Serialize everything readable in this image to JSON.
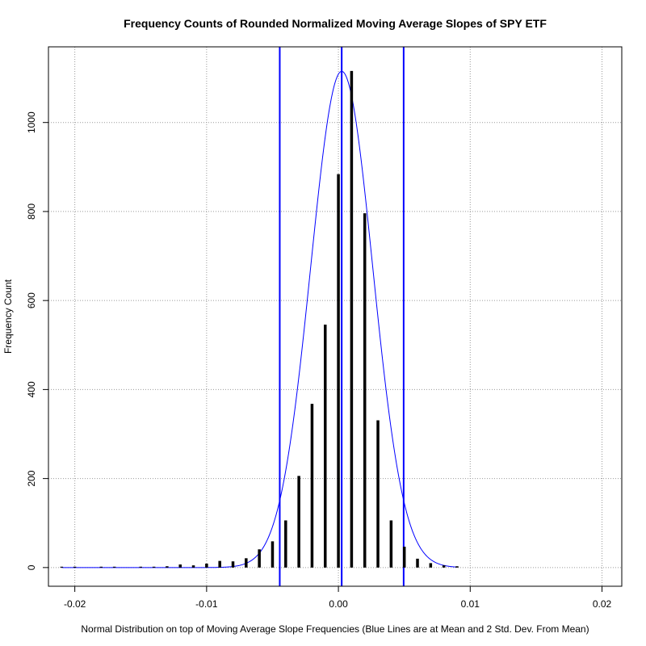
{
  "chart_data": {
    "type": "bar",
    "title": "Frequency Counts of Rounded Normalized Moving Average Slopes of SPY ETF",
    "xlabel": "Normal Distribution on top of Moving Average Slope Frequencies (Blue Lines are at Mean and 2 Std. Dev. From Mean)",
    "ylabel": "Frequency Count",
    "xlim": [
      -0.022,
      0.0215
    ],
    "ylim": [
      -42,
      1170
    ],
    "x_ticks": [
      -0.02,
      -0.01,
      0.0,
      0.01,
      0.02
    ],
    "x_tick_labels": [
      "-0.02",
      "-0.01",
      "0.00",
      "0.01",
      "0.02"
    ],
    "y_ticks": [
      0,
      200,
      400,
      600,
      800,
      1000
    ],
    "y_tick_labels": [
      "0",
      "200",
      "400",
      "600",
      "800",
      "1000"
    ],
    "grid": true,
    "x": [
      -0.021,
      -0.02,
      -0.018,
      -0.017,
      -0.015,
      -0.014,
      -0.013,
      -0.012,
      -0.011,
      -0.01,
      -0.009,
      -0.008,
      -0.007,
      -0.006,
      -0.005,
      -0.004,
      -0.003,
      -0.002,
      -0.001,
      0.0,
      0.001,
      0.002,
      0.003,
      0.004,
      0.005,
      0.006,
      0.007,
      0.008,
      0.009
    ],
    "values": [
      1,
      1,
      1,
      1,
      1,
      1,
      2,
      6,
      4,
      8,
      14,
      13,
      20,
      40,
      58,
      105,
      205,
      367,
      545,
      883,
      1115,
      795,
      330,
      105,
      46,
      19,
      9,
      4,
      2
    ],
    "normal_curve": {
      "mean": 0.00025,
      "sd": 0.00235,
      "peak": 1115,
      "color": "#0000ff"
    },
    "vlines": [
      -0.00445,
      0.00025,
      0.00495
    ],
    "vline_color": "#0000ff",
    "bar_color": "#000000"
  }
}
